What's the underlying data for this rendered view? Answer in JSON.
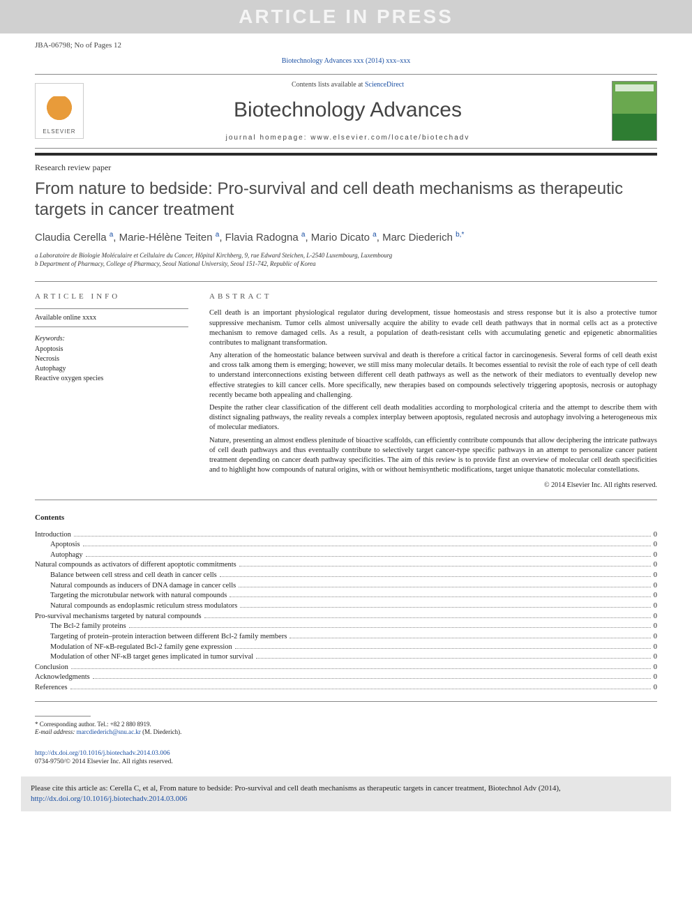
{
  "banner": "ARTICLE IN PRESS",
  "header": {
    "manuscript_id": "JBA-06798; No of Pages 12",
    "citation_line": "Biotechnology Advances xxx (2014) xxx–xxx"
  },
  "journal_box": {
    "scidir_prefix": "Contents lists available at ",
    "scidir_link": "ScienceDirect",
    "journal_name": "Biotechnology Advances",
    "homepage_label": "journal homepage: www.elsevier.com/locate/biotechadv",
    "publisher_logo_text": "ELSEVIER"
  },
  "article": {
    "type": "Research review paper",
    "title": "From nature to bedside: Pro-survival and cell death mechanisms as therapeutic targets in cancer treatment",
    "authors_html": "Claudia Cerella <sup>a</sup>, Marie-Hélène Teiten <sup>a</sup>, Flavia Radogna <sup>a</sup>, Mario Dicato <sup>a</sup>, Marc Diederich <sup>b,*</sup>",
    "affiliations": [
      "a  Laboratoire de Biologie Moléculaire et Cellulaire du Cancer, Hôpital Kirchberg, 9, rue Edward Steichen, L-2540 Luxembourg, Luxembourg",
      "b  Department of Pharmacy, College of Pharmacy, Seoul National University, Seoul 151-742, Republic of Korea"
    ]
  },
  "article_info": {
    "heading": "ARTICLE INFO",
    "available": "Available online xxxx",
    "keywords_label": "Keywords:",
    "keywords": [
      "Apoptosis",
      "Necrosis",
      "Autophagy",
      "Reactive oxygen species"
    ]
  },
  "abstract": {
    "heading": "ABSTRACT",
    "paragraphs": [
      "Cell death is an important physiological regulator during development, tissue homeostasis and stress response but it is also a protective tumor suppressive mechanism. Tumor cells almost universally acquire the ability to evade cell death pathways that in normal cells act as a protective mechanism to remove damaged cells. As a result, a population of death-resistant cells with accumulating genetic and epigenetic abnormalities contributes to malignant transformation.",
      "Any alteration of the homeostatic balance between survival and death is therefore a critical factor in carcinogenesis. Several forms of cell death exist and cross talk among them is emerging; however, we still miss many molecular details. It becomes essential to revisit the role of each type of cell death to understand interconnections existing between different cell death pathways as well as the network of their mediators to eventually develop new effective strategies to kill cancer cells. More specifically, new therapies based on compounds selectively triggering apoptosis, necrosis or autophagy recently became both appealing and challenging.",
      "Despite the rather clear classification of the different cell death modalities according to morphological criteria and the attempt to describe them with distinct signaling pathways, the reality reveals a complex interplay between apoptosis, regulated necrosis and autophagy involving a heterogeneous mix of molecular mediators.",
      "Nature, presenting an almost endless plenitude of bioactive scaffolds, can efficiently contribute compounds that allow deciphering the intricate pathways of cell death pathways and thus eventually contribute to selectively target cancer-type specific pathways in an attempt to personalize cancer patient treatment depending on cancer death pathway specificities. The aim of this review is to provide first an overview of molecular cell death specificities and to highlight how compounds of natural origins, with or without hemisynthetic modifications, target unique thanatotic molecular constellations."
    ],
    "copyright": "© 2014 Elsevier Inc. All rights reserved."
  },
  "contents": {
    "heading": "Contents",
    "items": [
      {
        "label": "Introduction",
        "indent": 0,
        "page": "0"
      },
      {
        "label": "Apoptosis",
        "indent": 1,
        "page": "0"
      },
      {
        "label": "Autophagy",
        "indent": 1,
        "page": "0"
      },
      {
        "label": "Natural compounds as activators of different apoptotic commitments",
        "indent": 0,
        "page": "0"
      },
      {
        "label": "Balance between cell stress and cell death in cancer cells",
        "indent": 1,
        "page": "0"
      },
      {
        "label": "Natural compounds as inducers of DNA damage in cancer cells",
        "indent": 1,
        "page": "0"
      },
      {
        "label": "Targeting the microtubular network with natural compounds",
        "indent": 1,
        "page": "0"
      },
      {
        "label": "Natural compounds as endoplasmic reticulum stress modulators",
        "indent": 1,
        "page": "0"
      },
      {
        "label": "Pro-survival mechanisms targeted by natural compounds",
        "indent": 0,
        "page": "0"
      },
      {
        "label": "The Bcl-2 family proteins",
        "indent": 1,
        "page": "0"
      },
      {
        "label": "Targeting of protein–protein interaction between different Bcl-2 family members",
        "indent": 1,
        "page": "0"
      },
      {
        "label": "Modulation of NF-κB-regulated Bcl-2 family gene expression",
        "indent": 1,
        "page": "0"
      },
      {
        "label": "Modulation of other NF-κB target genes implicated in tumor survival",
        "indent": 1,
        "page": "0"
      },
      {
        "label": "Conclusion",
        "indent": 0,
        "page": "0"
      },
      {
        "label": "Acknowledgments",
        "indent": 0,
        "page": "0"
      },
      {
        "label": "References",
        "indent": 0,
        "page": "0"
      }
    ]
  },
  "footnotes": {
    "corresponding": "*  Corresponding author. Tel.: +82 2 880 8919.",
    "email_label": "E-mail address: ",
    "email": "marcdiederich@snu.ac.kr",
    "email_suffix": " (M. Diederich)."
  },
  "doi": {
    "url": "http://dx.doi.org/10.1016/j.biotechadv.2014.03.006",
    "rights": "0734-9750/© 2014 Elsevier Inc. All rights reserved."
  },
  "citation_box": {
    "prefix": "Please cite this article as: Cerella C, et al, From nature to bedside: Pro-survival and cell death mechanisms as therapeutic targets in cancer treatment, Biotechnol Adv (2014), ",
    "url": "http://dx.doi.org/10.1016/j.biotechadv.2014.03.006"
  },
  "colors": {
    "link": "#1a4fa3",
    "banner_bg": "#d0d0d0",
    "banner_fg": "#f5f5f5",
    "rule": "#2b2b2b",
    "cite_bg": "#e6e6e6"
  }
}
